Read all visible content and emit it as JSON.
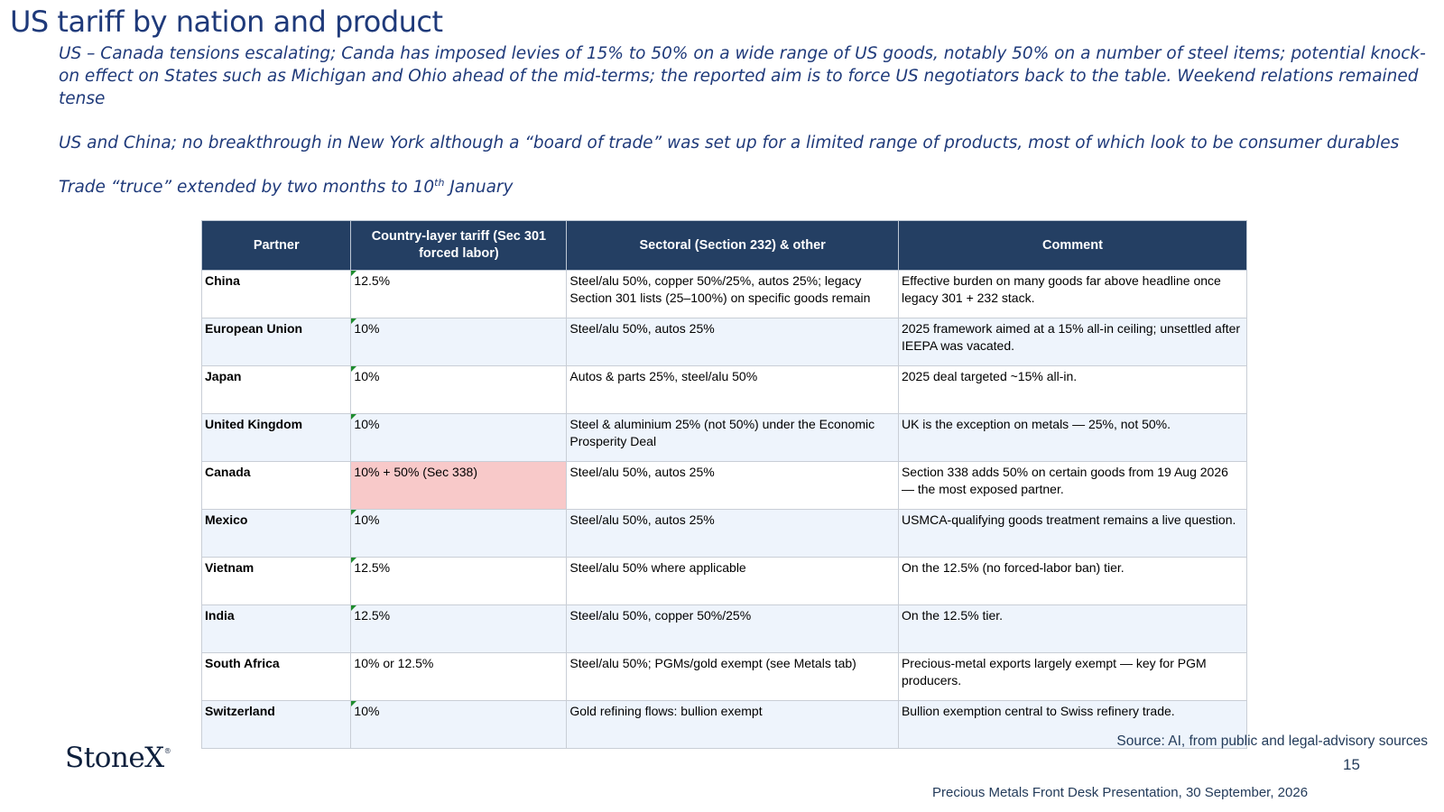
{
  "title": "US tariff by nation and product",
  "bullets": {
    "p1": "US – Canada tensions escalating; Canda has imposed levies of 15% to 50% on a wide range of US goods, notably 50% on a number of steel items; potential knock-on effect on States such as Michigan and Ohio ahead of the mid-terms; the reported aim is to force US negotiators back to the table.  Weekend relations remained tense",
    "p2": "US and China; no breakthrough in New York although a “board of trade” was set up for a limited range of products, most of which look to be consumer durables",
    "p3_pre": "Trade “truce” extended by two months to 10",
    "p3_sup": "th",
    "p3_post": " January"
  },
  "table": {
    "headers": [
      "Partner",
      "Country-layer tariff (Sec 301 forced labor)",
      "Sectoral (Section 232) & other",
      "Comment"
    ],
    "rows": [
      {
        "partner": "China",
        "tariff": "12.5%",
        "sectoral": "Steel/alu 50%, copper 50%/25%, autos 25%; legacy Section 301 lists (25–100%) on specific goods remain",
        "comment": "Effective burden on many goods far above headline once legacy 301 + 232 stack."
      },
      {
        "partner": "European Union",
        "tariff": "10%",
        "sectoral": "Steel/alu 50%, autos 25%",
        "comment": "2025 framework aimed at a 15% all-in ceiling; unsettled after IEEPA was vacated."
      },
      {
        "partner": "Japan",
        "tariff": "10%",
        "sectoral": "Autos & parts 25%, steel/alu 50%",
        "comment": "2025 deal targeted ~15% all-in."
      },
      {
        "partner": "United Kingdom",
        "tariff": "10%",
        "sectoral": "Steel & aluminium 25% (not 50%) under the Economic Prosperity Deal",
        "comment": "UK is the exception on metals — 25%, not 50%."
      },
      {
        "partner": "Canada",
        "tariff": "10% + 50% (Sec 338)",
        "sectoral": "Steel/alu 50%, autos 25%",
        "comment": "Section 338 adds 50% on certain goods from 19 Aug 2026 — the most exposed partner."
      },
      {
        "partner": "Mexico",
        "tariff": "10%",
        "sectoral": "Steel/alu 50%, autos 25%",
        "comment": "USMCA-qualifying goods treatment remains a live question."
      },
      {
        "partner": "Vietnam",
        "tariff": "12.5%",
        "sectoral": "Steel/alu 50% where applicable",
        "comment": "On the 12.5% (no forced-labor ban) tier."
      },
      {
        "partner": "India",
        "tariff": "12.5%",
        "sectoral": "Steel/alu 50%, copper 50%/25%",
        "comment": "On the 12.5% tier."
      },
      {
        "partner": "South Africa",
        "tariff": "10% or 12.5%",
        "sectoral": "Steel/alu 50%; PGMs/gold exempt (see Metals tab)",
        "comment": "Precious-metal exports largely exempt — key for PGM producers."
      },
      {
        "partner": "Switzerland",
        "tariff": "10%",
        "sectoral": "Gold refining flows: bullion exempt",
        "comment": "Bullion exemption central to Swiss refinery trade."
      }
    ]
  },
  "colors": {
    "title_blue": "#1f3a7a",
    "header_bg": "#243f63",
    "row_alt_bg": "#eef4fc",
    "highlight_bg": "#f8c9c9",
    "cell_marker": "#1e8c2e"
  },
  "logo": {
    "text": "StoneX",
    "mark": "®"
  },
  "footer": {
    "source": "Source: AI, from public and legal-advisory sources",
    "page_number": "15",
    "presentation": "Precious Metals Front Desk Presentation, 30 September, 2026"
  }
}
